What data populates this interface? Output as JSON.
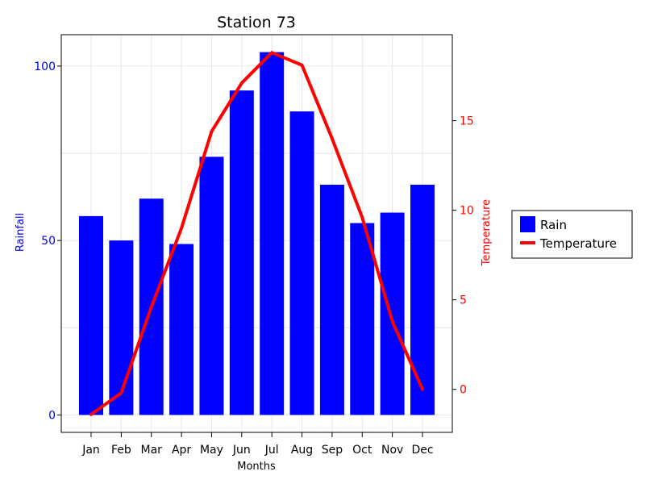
{
  "chart_data": {
    "type": "bar+line",
    "title": "Station 73",
    "categories": [
      "Jan",
      "Feb",
      "Mar",
      "Apr",
      "May",
      "Jun",
      "Jul",
      "Aug",
      "Sep",
      "Oct",
      "Nov",
      "Dec"
    ],
    "xlabel": "Months",
    "ylabel_left": "Rainfall",
    "ylabel_right": "Temperature",
    "series": [
      {
        "name": "Rain",
        "kind": "bar",
        "axis": "left",
        "color": "#0000ff",
        "values": [
          57,
          50,
          62,
          49,
          74,
          93,
          104,
          87,
          66,
          55,
          58,
          66
        ]
      },
      {
        "name": "Temperature",
        "kind": "line",
        "axis": "right",
        "color": "#ff0000",
        "values": [
          -1.4,
          -0.2,
          4.6,
          9.0,
          14.4,
          17.1,
          18.8,
          18.1,
          14.0,
          9.6,
          3.8,
          0.0
        ]
      }
    ],
    "ylim_left": [
      -5,
      109
    ],
    "ylim_right": [
      -2.4,
      19.8
    ],
    "yticks_left": [
      0,
      50,
      100
    ],
    "yticks_right": [
      0,
      5,
      10,
      15
    ],
    "grid": true,
    "legend_position": "right",
    "colors": {
      "left_axis": "#0000ff",
      "right_axis": "#ff0000",
      "grid": "#e6e6e6",
      "frame": "#000000"
    }
  }
}
